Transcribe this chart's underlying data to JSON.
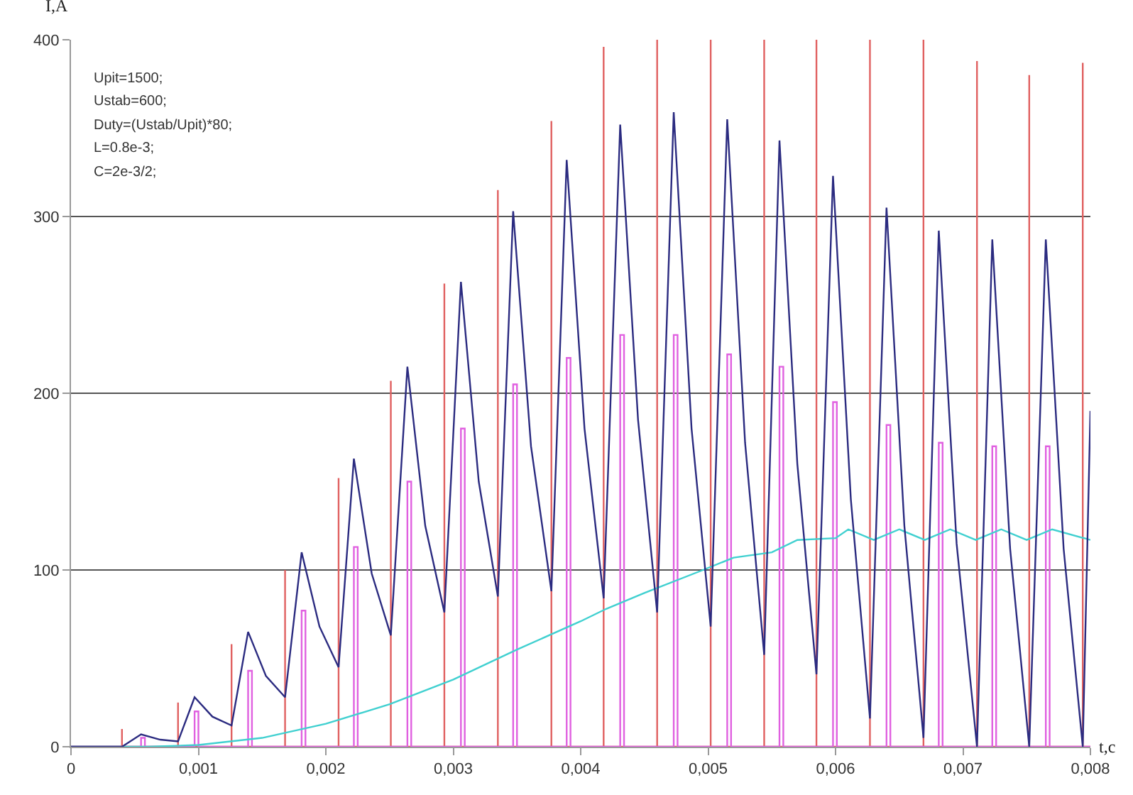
{
  "chart_data": {
    "type": "line",
    "xlabel": "t,c",
    "ylabel": "I,A",
    "annotations": [
      "Upit=1500;",
      "Ustab=600;",
      "Duty=(Ustab/Upit)*80;",
      "L=0.8e-3;",
      "C=2e-3/2;"
    ],
    "xlim": [
      0,
      0.008
    ],
    "ylim": [
      0,
      400
    ],
    "xticks": [
      0,
      {
        "value": 0.001,
        "label": "0,001"
      },
      {
        "value": 0.002,
        "label": "0,002"
      },
      {
        "value": 0.003,
        "label": "0,003"
      },
      {
        "value": 0.004,
        "label": "0,004"
      },
      {
        "value": 0.005,
        "label": "0,005"
      },
      {
        "value": 0.006,
        "label": "0,006"
      },
      {
        "value": 0.007,
        "label": "0,007"
      },
      {
        "value": 0.008,
        "label": "0,008"
      }
    ],
    "yticks": [
      0,
      100,
      200,
      300,
      400
    ],
    "grid": "y",
    "marker": "none",
    "line_style": "solid",
    "series": [
      {
        "color": "#e06060",
        "x": [
          0,
          0.0004,
          0.0004,
          0.0004,
          0.00084,
          0.00084,
          0.00084,
          0.00126,
          0.00126,
          0.00126,
          0.00168,
          0.00168,
          0.00168,
          0.0021,
          0.0021,
          0.0021,
          0.00251,
          0.00251,
          0.00251,
          0.00293,
          0.00293,
          0.00293,
          0.00335,
          0.00335,
          0.00335,
          0.00377,
          0.00377,
          0.00377,
          0.00418,
          0.00418,
          0.00418,
          0.0046,
          0.0046,
          0.0046,
          0.00502,
          0.00502,
          0.00502,
          0.00544,
          0.00544,
          0.00544,
          0.00585,
          0.00585,
          0.00585,
          0.00627,
          0.00627,
          0.00627,
          0.00669,
          0.00669,
          0.00669,
          0.00711,
          0.00711,
          0.00711,
          0.00752,
          0.00752,
          0.00752,
          0.00794,
          0.00794,
          0.00794,
          0.008
        ],
        "values": [
          0,
          0,
          10,
          0,
          0,
          25,
          0,
          0,
          58,
          0,
          0,
          100,
          0,
          0,
          152,
          0,
          0,
          207,
          0,
          0,
          262,
          0,
          0,
          315,
          0,
          0,
          354,
          0,
          0,
          396,
          0,
          0,
          400,
          0,
          0,
          400,
          0,
          0,
          400,
          0,
          0,
          400,
          0,
          0,
          400,
          0,
          0,
          400,
          0,
          0,
          388,
          0,
          0,
          380,
          0,
          0,
          387,
          0,
          0
        ]
      },
      {
        "color": "#e060e0",
        "x": [
          0,
          0.00055,
          0.00055,
          0.00058,
          0.00058,
          0.00097,
          0.00097,
          0.001,
          0.001,
          0.00139,
          0.00139,
          0.00142,
          0.00142,
          0.00181,
          0.00181,
          0.00184,
          0.00184,
          0.00222,
          0.00222,
          0.00225,
          0.00225,
          0.00264,
          0.00264,
          0.00267,
          0.00267,
          0.00306,
          0.00306,
          0.00309,
          0.00309,
          0.00347,
          0.00347,
          0.0035,
          0.0035,
          0.00389,
          0.00389,
          0.00392,
          0.00392,
          0.00431,
          0.00431,
          0.00434,
          0.00434,
          0.00473,
          0.00473,
          0.00476,
          0.00476,
          0.00515,
          0.00515,
          0.00518,
          0.00518,
          0.00556,
          0.00556,
          0.00559,
          0.00559,
          0.00598,
          0.00598,
          0.00601,
          0.00601,
          0.0064,
          0.0064,
          0.00643,
          0.00643,
          0.00681,
          0.00681,
          0.00684,
          0.00684,
          0.00723,
          0.00723,
          0.00726,
          0.00726,
          0.00765,
          0.00765,
          0.00768,
          0.00768,
          0.008
        ],
        "values": [
          0,
          0,
          5,
          5,
          0,
          0,
          20,
          20,
          0,
          0,
          43,
          43,
          0,
          0,
          77,
          77,
          0,
          0,
          113,
          113,
          0,
          0,
          150,
          150,
          0,
          0,
          180,
          180,
          0,
          0,
          205,
          205,
          0,
          0,
          220,
          220,
          0,
          0,
          233,
          233,
          0,
          0,
          233,
          233,
          0,
          0,
          222,
          222,
          0,
          0,
          215,
          215,
          0,
          0,
          195,
          195,
          0,
          0,
          182,
          182,
          0,
          0,
          172,
          172,
          0,
          0,
          170,
          170,
          0,
          0,
          170,
          170,
          0,
          0
        ]
      },
      {
        "color": "#40d0d0",
        "x": [
          0,
          0.0006,
          0.001,
          0.0015,
          0.002,
          0.0025,
          0.003,
          0.0035,
          0.004,
          0.0042,
          0.0045,
          0.00496,
          0.0052,
          0.0055,
          0.0057,
          0.006,
          0.0061,
          0.0063,
          0.0065,
          0.0067,
          0.0069,
          0.0071,
          0.0073,
          0.0075,
          0.0077,
          0.008
        ],
        "values": [
          0,
          0,
          1,
          5,
          13,
          24,
          38,
          55,
          71,
          78,
          87,
          100,
          107,
          110,
          117,
          118,
          123,
          117,
          123,
          117,
          123,
          117,
          123,
          117,
          123,
          117
        ]
      },
      {
        "color": "#2b2b80",
        "x": [
          0,
          0.0004,
          0.00055,
          0.0007,
          0.00084,
          0.00097,
          0.00111,
          0.00126,
          0.00139,
          0.00153,
          0.00168,
          0.00181,
          0.00195,
          0.0021,
          0.00222,
          0.00236,
          0.00251,
          0.00264,
          0.00278,
          0.00293,
          0.00306,
          0.0032,
          0.00335,
          0.00347,
          0.00361,
          0.00377,
          0.00389,
          0.00403,
          0.00418,
          0.00431,
          0.00445,
          0.0046,
          0.00473,
          0.00487,
          0.00502,
          0.00515,
          0.00529,
          0.00544,
          0.00556,
          0.0057,
          0.00585,
          0.00598,
          0.00612,
          0.00627,
          0.0064,
          0.00654,
          0.00669,
          0.00681,
          0.00695,
          0.00711,
          0.00723,
          0.00737,
          0.00752,
          0.00765,
          0.00779,
          0.00794,
          0.008
        ],
        "values": [
          0,
          0,
          7,
          4,
          3,
          28,
          17,
          12,
          65,
          40,
          28,
          110,
          68,
          45,
          163,
          98,
          63,
          215,
          125,
          76,
          263,
          150,
          85,
          303,
          170,
          88,
          332,
          180,
          84,
          352,
          185,
          76,
          359,
          180,
          68,
          355,
          172,
          52,
          343,
          160,
          41,
          323,
          140,
          16,
          305,
          125,
          5,
          292,
          115,
          0,
          287,
          112,
          0,
          287,
          112,
          0,
          190
        ]
      }
    ]
  }
}
